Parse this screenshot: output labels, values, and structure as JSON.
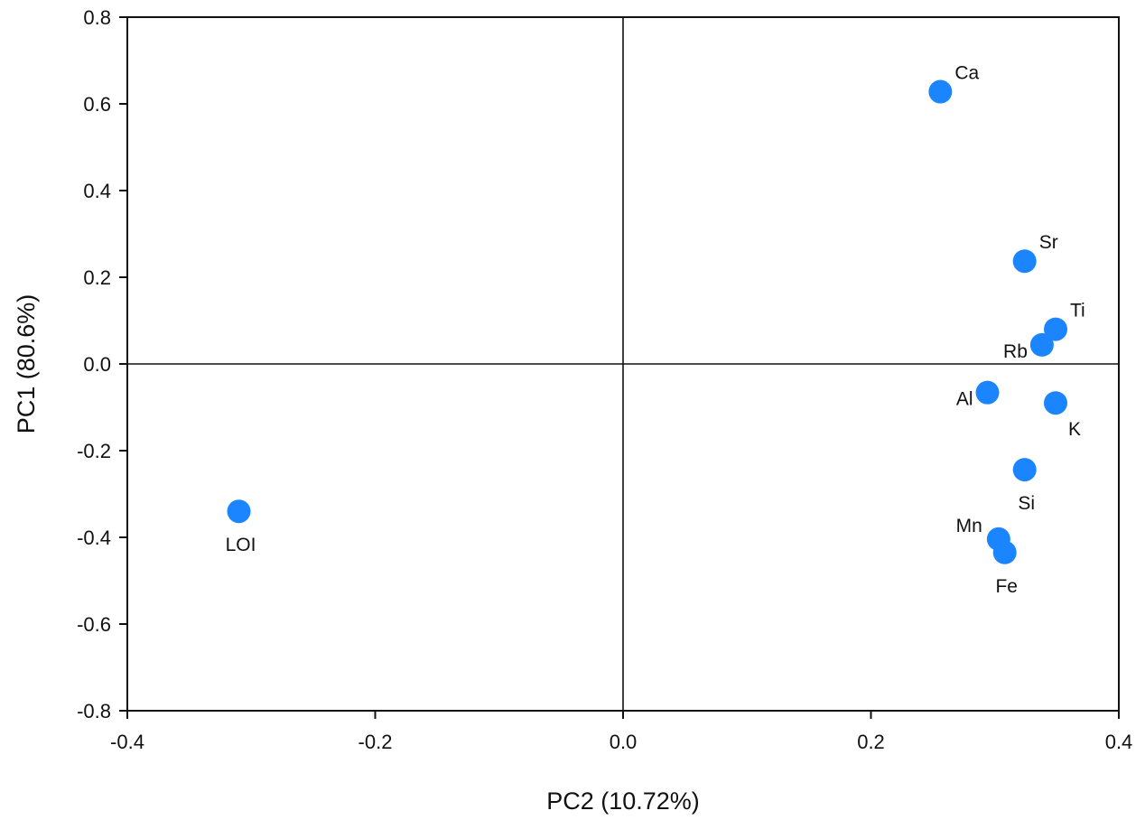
{
  "chart_data": {
    "type": "scatter",
    "title": "",
    "xlabel": "PC2 (10.72%)",
    "ylabel": "PC1 (80.6%)",
    "xlim": [
      -0.4,
      0.4
    ],
    "ylim": [
      -0.8,
      0.8
    ],
    "xticks": [
      "-0.4",
      "-0.2",
      "0.0",
      "0.2",
      "0.4"
    ],
    "yticks": [
      "0.8",
      "0.6",
      "0.4",
      "0.2",
      "0.0",
      "-0.2",
      "-0.4",
      "-0.6",
      "-0.8"
    ],
    "grid": false,
    "zero_lines": true,
    "marker_color": "#1a85ff",
    "points": [
      {
        "label": "Ca",
        "x": 0.256,
        "y": 0.628,
        "label_pos": "top-right"
      },
      {
        "label": "Sr",
        "x": 0.324,
        "y": 0.237,
        "label_pos": "top-right"
      },
      {
        "label": "Ti",
        "x": 0.349,
        "y": 0.08,
        "label_pos": "top-right"
      },
      {
        "label": "Rb",
        "x": 0.338,
        "y": 0.044,
        "label_pos": "bottom-left"
      },
      {
        "label": "Al",
        "x": 0.294,
        "y": -0.066,
        "label_pos": "bottom-left"
      },
      {
        "label": "K",
        "x": 0.349,
        "y": -0.09,
        "label_pos": "bottom-right"
      },
      {
        "label": "Si",
        "x": 0.324,
        "y": -0.244,
        "label_pos": "bottom"
      },
      {
        "label": "Mn",
        "x": 0.303,
        "y": -0.404,
        "label_pos": "top-left"
      },
      {
        "label": "Fe",
        "x": 0.308,
        "y": -0.435,
        "label_pos": "bottom"
      },
      {
        "label": "LOI",
        "x": -0.31,
        "y": -0.34,
        "label_pos": "bottom"
      }
    ]
  }
}
